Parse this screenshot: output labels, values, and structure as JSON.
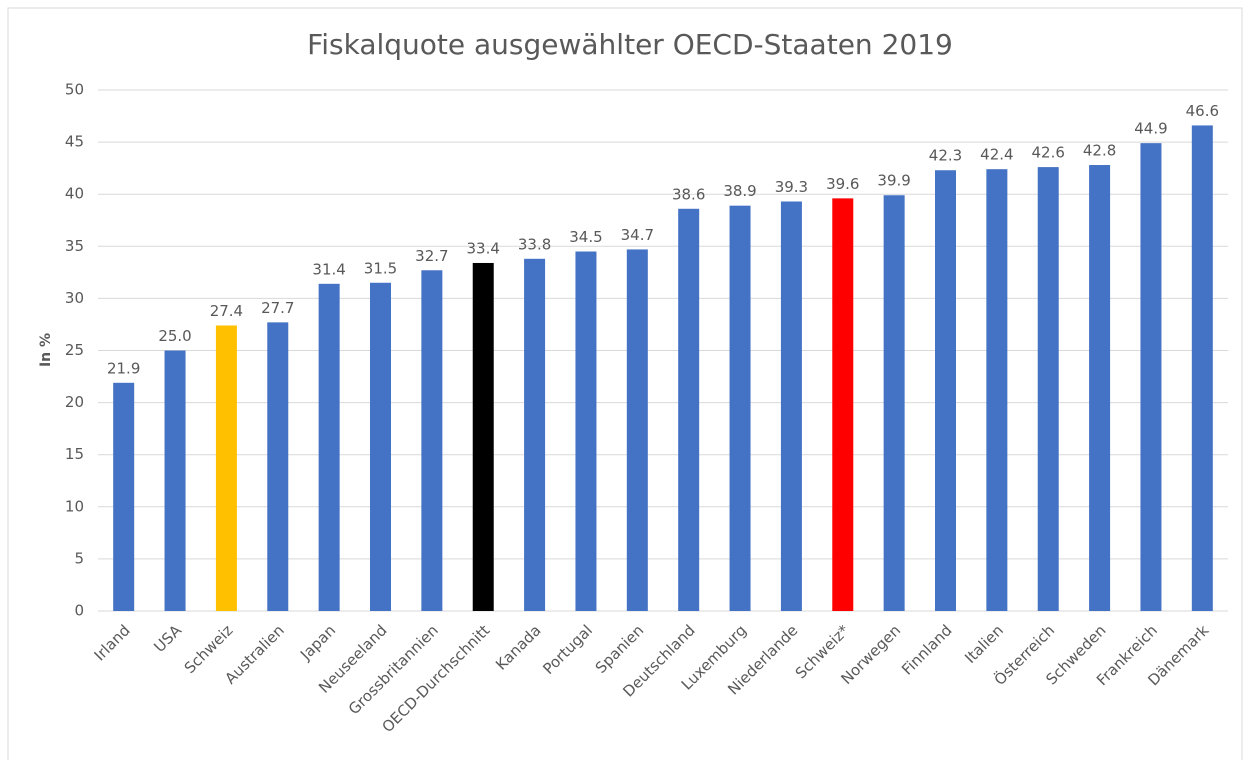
{
  "chart_data": {
    "type": "bar",
    "title": "Fiskalquote ausgewählter OECD-Staaten 2019",
    "ylabel": "In %",
    "categories": [
      "Irland",
      "USA",
      "Schweiz",
      "Australien",
      "Japan",
      "Neuseeland",
      "Grossbritannien",
      "OECD-Durchschnitt",
      "Kanada",
      "Portugal",
      "Spanien",
      "Deutschland",
      "Luxemburg",
      "Niederlande",
      "Schweiz*",
      "Norwegen",
      "Finnland",
      "Italien",
      "Österreich",
      "Schweden",
      "Frankreich",
      "Dänemark"
    ],
    "values": [
      21.9,
      25.0,
      27.4,
      27.7,
      31.4,
      31.5,
      32.7,
      33.4,
      33.8,
      34.5,
      34.7,
      38.6,
      38.9,
      39.3,
      39.6,
      39.9,
      42.3,
      42.4,
      42.6,
      42.8,
      44.9,
      46.6
    ],
    "value_labels": [
      "21.9",
      "25.0",
      "27.4",
      "27.7",
      "31.4",
      "31.5",
      "32.7",
      "33.4",
      "33.8",
      "34.5",
      "34.7",
      "38.6",
      "38.9",
      "39.3",
      "39.6",
      "39.9",
      "42.3",
      "42.4",
      "42.6",
      "42.8",
      "44.9",
      "46.6"
    ],
    "colors": [
      "#4472c4",
      "#4472c4",
      "#ffc000",
      "#4472c4",
      "#4472c4",
      "#4472c4",
      "#4472c4",
      "#000000",
      "#4472c4",
      "#4472c4",
      "#4472c4",
      "#4472c4",
      "#4472c4",
      "#4472c4",
      "#ff0000",
      "#4472c4",
      "#4472c4",
      "#4472c4",
      "#4472c4",
      "#4472c4",
      "#4472c4",
      "#4472c4"
    ],
    "ylim": [
      0,
      50
    ],
    "yticks": [
      0,
      5,
      10,
      15,
      20,
      25,
      30,
      35,
      40,
      45,
      50
    ],
    "grid": true
  }
}
